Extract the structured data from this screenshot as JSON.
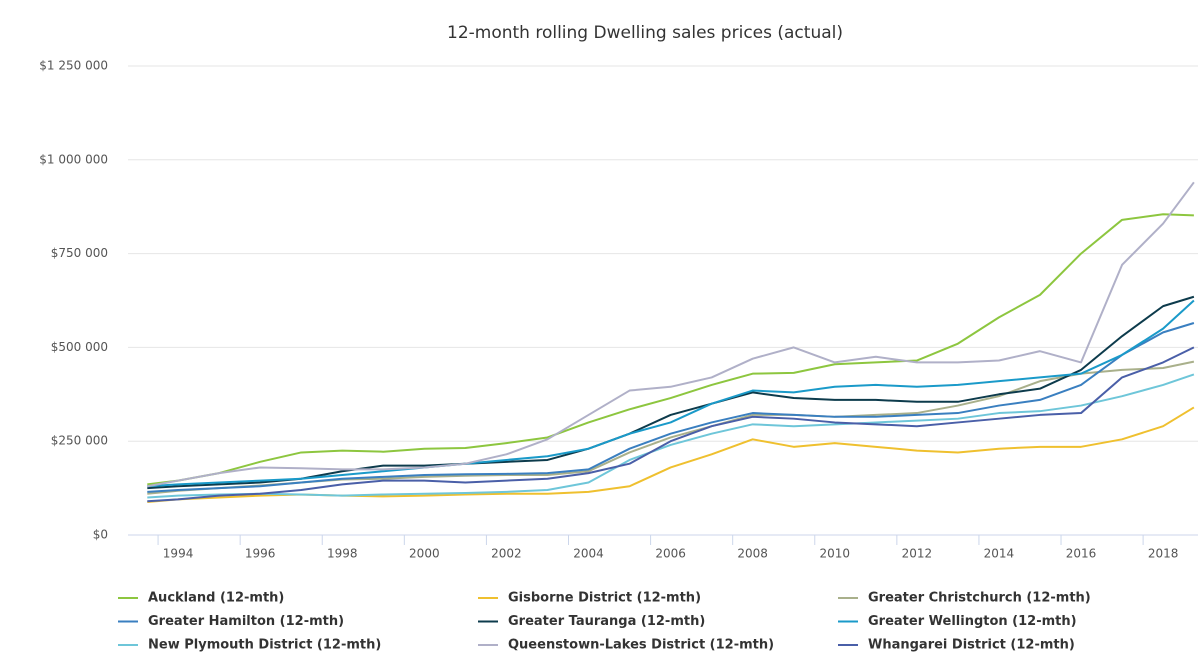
{
  "chart_data": {
    "type": "line",
    "title": "12-month rolling Dwelling sales prices (actual)",
    "x": [
      1993.25,
      1994,
      1995,
      1996,
      1997,
      1998,
      1999,
      2000,
      2001,
      2002,
      2003,
      2004,
      2005,
      2006,
      2007,
      2008,
      2009,
      2010,
      2011,
      2012,
      2013,
      2014,
      2015,
      2016,
      2017,
      2018,
      2018.75
    ],
    "series": [
      {
        "name": "Auckland (12-mth)",
        "color": "#8dc63f",
        "values": [
          135000,
          145000,
          165000,
          195000,
          220000,
          225000,
          222000,
          230000,
          232000,
          245000,
          260000,
          300000,
          335000,
          365000,
          400000,
          430000,
          432000,
          455000,
          460000,
          465000,
          510000,
          580000,
          640000,
          750000,
          840000,
          855000,
          852000
        ]
      },
      {
        "name": "Gisborne District (12-mth)",
        "color": "#efc02f",
        "values": [
          88000,
          95000,
          100000,
          105000,
          108000,
          105000,
          103000,
          105000,
          108000,
          110000,
          110000,
          115000,
          130000,
          180000,
          215000,
          255000,
          235000,
          245000,
          235000,
          225000,
          220000,
          230000,
          235000,
          235000,
          255000,
          290000,
          340000
        ]
      },
      {
        "name": "Greater Christchurch (12-mth)",
        "color": "#a9b08b",
        "values": [
          110000,
          118000,
          125000,
          132000,
          140000,
          148000,
          150000,
          155000,
          158000,
          160000,
          160000,
          170000,
          220000,
          260000,
          290000,
          320000,
          320000,
          315000,
          320000,
          325000,
          345000,
          370000,
          410000,
          430000,
          440000,
          445000,
          462000
        ]
      },
      {
        "name": "Greater Hamilton (12-mth)",
        "color": "#3a7fc0",
        "values": [
          115000,
          120000,
          125000,
          130000,
          140000,
          150000,
          155000,
          160000,
          162000,
          163000,
          165000,
          175000,
          230000,
          270000,
          300000,
          325000,
          320000,
          315000,
          315000,
          320000,
          325000,
          345000,
          360000,
          400000,
          480000,
          540000,
          565000
        ]
      },
      {
        "name": "Greater Tauranga (12-mth)",
        "color": "#0d3b4c",
        "values": [
          125000,
          130000,
          135000,
          140000,
          150000,
          170000,
          185000,
          185000,
          190000,
          195000,
          200000,
          230000,
          270000,
          320000,
          350000,
          380000,
          365000,
          360000,
          360000,
          355000,
          355000,
          375000,
          390000,
          440000,
          530000,
          610000,
          635000
        ]
      },
      {
        "name": "Greater Wellington (12-mth)",
        "color": "#1a9ac9",
        "values": [
          130000,
          135000,
          140000,
          145000,
          150000,
          160000,
          170000,
          180000,
          190000,
          200000,
          210000,
          230000,
          270000,
          300000,
          350000,
          385000,
          380000,
          395000,
          400000,
          395000,
          400000,
          410000,
          420000,
          430000,
          480000,
          550000,
          625000
        ]
      },
      {
        "name": "New Plymouth District (12-mth)",
        "color": "#6ec6d9",
        "values": [
          100000,
          105000,
          108000,
          110000,
          108000,
          105000,
          108000,
          110000,
          112000,
          115000,
          120000,
          140000,
          200000,
          240000,
          270000,
          295000,
          290000,
          295000,
          300000,
          305000,
          310000,
          325000,
          330000,
          345000,
          370000,
          400000,
          428000
        ]
      },
      {
        "name": "Queenstown-Lakes District (12-mth)",
        "color": "#b0b0c8",
        "values": [
          130000,
          145000,
          165000,
          180000,
          178000,
          175000,
          175000,
          180000,
          190000,
          215000,
          255000,
          320000,
          385000,
          395000,
          420000,
          470000,
          500000,
          460000,
          475000,
          460000,
          460000,
          465000,
          490000,
          460000,
          720000,
          830000,
          940000
        ]
      },
      {
        "name": "Whangarei District (12-mth)",
        "color": "#4a5fa8",
        "values": [
          90000,
          95000,
          105000,
          110000,
          120000,
          135000,
          145000,
          145000,
          140000,
          145000,
          150000,
          165000,
          190000,
          250000,
          290000,
          315000,
          310000,
          300000,
          295000,
          290000,
          300000,
          310000,
          320000,
          325000,
          420000,
          460000,
          500000
        ]
      }
    ],
    "xlim": [
      1992.78,
      2018.85
    ],
    "xticks": [
      1994,
      1996,
      1998,
      2000,
      2002,
      2004,
      2006,
      2008,
      2010,
      2012,
      2014,
      2016,
      2018
    ],
    "ylim": [
      0,
      1250000
    ],
    "yticks": [
      {
        "value": 0,
        "label": "$0"
      },
      {
        "value": 250000,
        "label": "$250 000"
      },
      {
        "value": 500000,
        "label": "$500 000"
      },
      {
        "value": 750000,
        "label": "$750 000"
      },
      {
        "value": 1000000,
        "label": "$1 000 000"
      },
      {
        "value": 1250000,
        "label": "$1 250 000"
      }
    ],
    "grid": true
  }
}
